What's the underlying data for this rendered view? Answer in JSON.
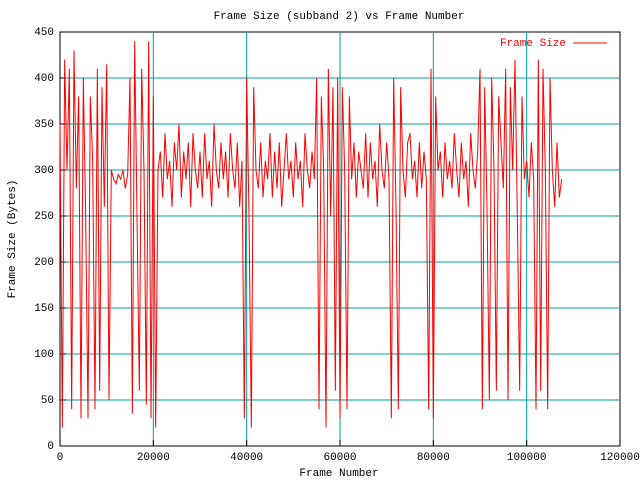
{
  "chart_data": {
    "type": "line",
    "title": "Frame Size (subband 2) vs Frame Number",
    "x_label": "Frame Number",
    "y_label": "Frame Size (Bytes)",
    "xlim": [
      0,
      120000
    ],
    "xticks": [
      0,
      20000,
      40000,
      60000,
      80000,
      100000,
      120000
    ],
    "ylim": [
      0,
      450
    ],
    "yticks": [
      0,
      50,
      100,
      150,
      200,
      250,
      300,
      350,
      400,
      450
    ],
    "grid": true,
    "grid_color": "#00a0a0",
    "legend": "upper right",
    "x": [
      0,
      500,
      1000,
      1500,
      2000,
      2500,
      3000,
      3500,
      4000,
      4500,
      5000,
      5500,
      6000,
      6500,
      7000,
      7500,
      8000,
      8500,
      9000,
      9500,
      10000,
      10500,
      11000,
      11500,
      12000,
      12500,
      13000,
      13500,
      14000,
      14500,
      15000,
      15500,
      16000,
      16500,
      17000,
      17500,
      18000,
      18500,
      19000,
      19500,
      20000,
      20500,
      21000,
      21500,
      22000,
      22500,
      23000,
      23500,
      24000,
      24500,
      25000,
      25500,
      26000,
      26500,
      27000,
      27500,
      28000,
      28500,
      29000,
      29500,
      30000,
      30500,
      31000,
      31500,
      32000,
      32500,
      33000,
      33500,
      34000,
      34500,
      35000,
      35500,
      36000,
      36500,
      37000,
      37500,
      38000,
      38500,
      39000,
      39500,
      40000,
      40500,
      41000,
      41500,
      42000,
      42500,
      43000,
      43500,
      44000,
      44500,
      45000,
      45500,
      46000,
      46500,
      47000,
      47500,
      48000,
      48500,
      49000,
      49500,
      50000,
      50500,
      51000,
      51500,
      52000,
      52500,
      53000,
      53500,
      54000,
      54500,
      55000,
      55500,
      56000,
      56500,
      57000,
      57500,
      58000,
      58500,
      59000,
      59500,
      60000,
      60500,
      61000,
      61500,
      62000,
      62500,
      63000,
      63500,
      64000,
      64500,
      65000,
      65500,
      66000,
      66500,
      67000,
      67500,
      68000,
      68500,
      69000,
      69500,
      70000,
      70500,
      71000,
      71500,
      72000,
      72500,
      73000,
      73500,
      74000,
      74500,
      75000,
      75500,
      76000,
      76500,
      77000,
      77500,
      78000,
      78500,
      79000,
      79500,
      80000,
      80500,
      81000,
      81500,
      82000,
      82500,
      83000,
      83500,
      84000,
      84500,
      85000,
      85500,
      86000,
      86500,
      87000,
      87500,
      88000,
      88500,
      89000,
      89500,
      90000,
      90500,
      91000,
      91500,
      92000,
      92500,
      93000,
      93500,
      94000,
      94500,
      95000,
      95500,
      96000,
      96500,
      97000,
      97500,
      98000,
      98500,
      99000,
      99500,
      100000,
      100500,
      101000,
      101500,
      102000,
      102500,
      103000,
      103500,
      104000,
      104500,
      105000,
      105500,
      106000,
      106500,
      107000,
      107500
    ],
    "series": [
      {
        "name": "Frame Size",
        "color": "#ff0000",
        "values": [
          350,
          20,
          420,
          300,
          410,
          40,
          430,
          280,
          380,
          30,
          400,
          250,
          30,
          380,
          310,
          40,
          410,
          60,
          390,
          260,
          415,
          50,
          300,
          290,
          285,
          295,
          290,
          300,
          280,
          295,
          400,
          35,
          440,
          250,
          60,
          410,
          300,
          45,
          440,
          30,
          380,
          20,
          300,
          320,
          270,
          340,
          290,
          310,
          260,
          330,
          300,
          350,
          270,
          320,
          290,
          330,
          260,
          340,
          300,
          280,
          320,
          270,
          340,
          290,
          310,
          260,
          350,
          300,
          280,
          330,
          290,
          320,
          270,
          340,
          300,
          280,
          330,
          260,
          310,
          30,
          400,
          250,
          20,
          390,
          300,
          280,
          330,
          270,
          310,
          290,
          340,
          270,
          320,
          280,
          330,
          260,
          300,
          340,
          290,
          310,
          270,
          330,
          290,
          310,
          260,
          340,
          300,
          280,
          320,
          290,
          400,
          40,
          380,
          300,
          20,
          410,
          250,
          390,
          60,
          400,
          30,
          390,
          300,
          40,
          380,
          290,
          330,
          270,
          320,
          300,
          280,
          340,
          270,
          330,
          290,
          310,
          260,
          350,
          300,
          280,
          330,
          290,
          30,
          400,
          260,
          40,
          390,
          300,
          270,
          330,
          340,
          290,
          310,
          270,
          330,
          280,
          320,
          290,
          40,
          410,
          30,
          380,
          300,
          320,
          270,
          330,
          290,
          310,
          280,
          340,
          300,
          270,
          330,
          290,
          310,
          260,
          340,
          300,
          280,
          320,
          410,
          40,
          390,
          260,
          50,
          400,
          300,
          60,
          380,
          330,
          280,
          410,
          50,
          390,
          300,
          420,
          250,
          60,
          380,
          290,
          310,
          270,
          330,
          290,
          40,
          420,
          60,
          410,
          300,
          40,
          400,
          300,
          260,
          330,
          270,
          290
        ]
      }
    ]
  }
}
